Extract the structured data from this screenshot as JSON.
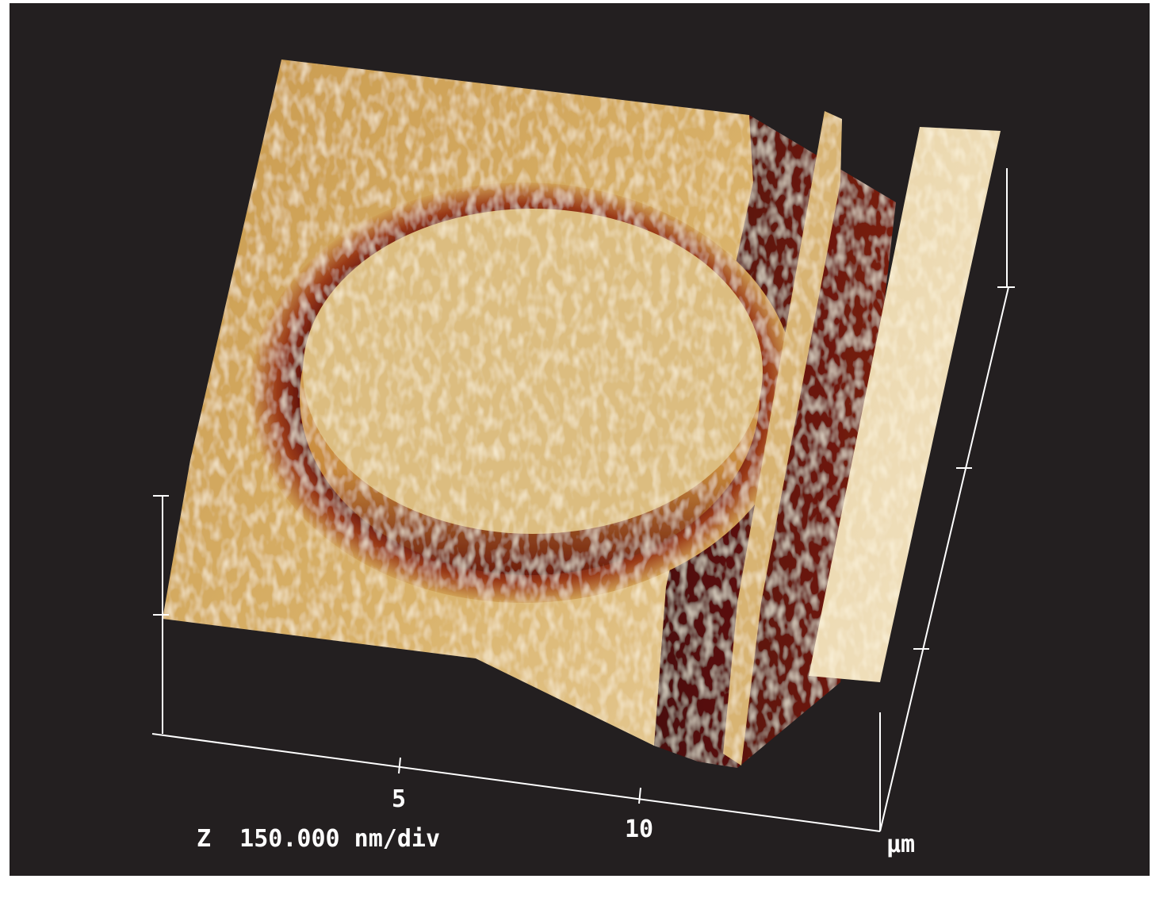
{
  "axis_labels": {
    "x_ticks": [
      "5",
      "10"
    ],
    "unit": "μm",
    "z_scale": "Z  150.000 nm/div"
  }
}
